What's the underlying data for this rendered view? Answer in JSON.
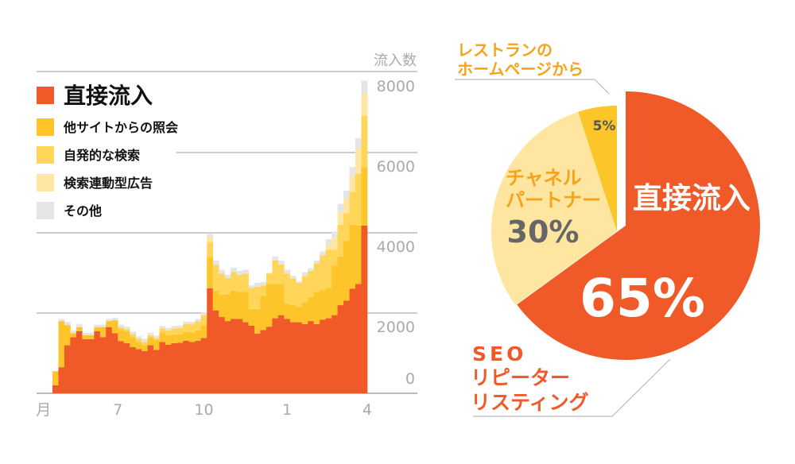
{
  "colors": {
    "direct": "#F05A28",
    "referral": "#FDC52A",
    "organic": "#FFD65A",
    "ads": "#FFE6A2",
    "other": "#E5E5E5",
    "grid": "#BBBBBB",
    "tick": "#AAAAAA",
    "pie_light": "#FEE6A0",
    "pie_gold": "#FCC62A",
    "label_orange": "#F7A21B",
    "label_dark": "#666666"
  },
  "chart_data": [
    {
      "type": "bar",
      "stacked": true,
      "title": "",
      "ylabel": "流入数",
      "xlabel": "",
      "ylim": [
        0,
        8000
      ],
      "yticks": [
        "0",
        "2000",
        "4000",
        "6000",
        "8000"
      ],
      "xticks": [
        {
          "label": "月",
          "index": -1.5
        },
        {
          "label": "7",
          "index": 11
        },
        {
          "label": "10",
          "index": 25.5
        },
        {
          "label": "1",
          "index": 39.5
        },
        {
          "label": "4",
          "index": 53
        }
      ],
      "grid": true,
      "legend_position": "top-left",
      "series": [
        {
          "name": "直接流入",
          "key": "direct",
          "values": [
            200,
            650,
            1200,
            1400,
            1550,
            1350,
            1350,
            1550,
            1400,
            1650,
            1500,
            1300,
            1250,
            1150,
            1100,
            1050,
            1200,
            1080,
            1280,
            1210,
            1250,
            1260,
            1310,
            1280,
            1310,
            1380,
            2620,
            2066,
            1900,
            1800,
            1856,
            1856,
            1771,
            1686,
            1490,
            1574,
            1660,
            1870,
            1948,
            1856,
            1771,
            1771,
            1725,
            1800,
            1725,
            1837,
            1870,
            1948,
            2197,
            2310,
            2604,
            2722,
            4180
          ]
        },
        {
          "name": "他サイトからの照会",
          "key": "referral",
          "values": [
            350,
            1150,
            500,
            100,
            100,
            100,
            100,
            100,
            250,
            150,
            320,
            300,
            300,
            250,
            180,
            150,
            200,
            250,
            240,
            240,
            220,
            210,
            220,
            240,
            260,
            320,
            780,
            494,
            560,
            670,
            704,
            669,
            754,
            414,
            610,
            853,
            1062,
            852,
            774,
            374,
            429,
            394,
            540,
            595,
            800,
            743,
            755,
            1232,
            1213,
            1490,
            1596,
            1458,
            1460
          ]
        },
        {
          "name": "自発的な検索",
          "key": "organic",
          "values": [
            0,
            0,
            0,
            0,
            0,
            0,
            0,
            0,
            0,
            0,
            0,
            50,
            50,
            80,
            80,
            80,
            50,
            50,
            100,
            120,
            150,
            160,
            200,
            200,
            220,
            250,
            370,
            640,
            525,
            400,
            460,
            425,
            460,
            525,
            557,
            263,
            263,
            588,
            488,
            755,
            660,
            590,
            655,
            655,
            720,
            860,
            950,
            395,
            790,
            690,
            820,
            1300,
            1280
          ]
        },
        {
          "name": "検索連動型広告",
          "key": "ads",
          "values": [
            0,
            0,
            0,
            0,
            0,
            0,
            0,
            0,
            0,
            0,
            0,
            0,
            0,
            0,
            0,
            0,
            0,
            0,
            0,
            0,
            0,
            0,
            0,
            0,
            0,
            0,
            120,
            0,
            0,
            0,
            0,
            0,
            0,
            0,
            0,
            0,
            0,
            0,
            0,
            0,
            0,
            0,
            0,
            0,
            0,
            0,
            135,
            295,
            325,
            360,
            390,
            630,
            560
          ]
        },
        {
          "name": "その他",
          "key": "other",
          "values": [
            0,
            50,
            80,
            60,
            80,
            60,
            60,
            60,
            60,
            60,
            60,
            60,
            60,
            60,
            60,
            80,
            60,
            60,
            60,
            60,
            60,
            60,
            60,
            60,
            60,
            60,
            80,
            110,
            95,
            80,
            110,
            100,
            95,
            65,
            98,
            85,
            15,
            100,
            100,
            95,
            70,
            35,
            100,
            65,
            65,
            100,
            130,
            165,
            195,
            200,
            230,
            250,
            310
          ]
        }
      ]
    },
    {
      "type": "pie",
      "slices": [
        {
          "key": "seo",
          "name": "SEO リピーター リスティング",
          "label": "直接流入",
          "value": 65,
          "value_label": "65%",
          "color": "#F05A28"
        },
        {
          "key": "partner",
          "name": "チャネル パートナー",
          "value": 30,
          "value_label": "30%",
          "color": "#FEE6A0"
        },
        {
          "key": "homepage",
          "name": "レストランの ホームページから",
          "value": 5,
          "value_label": "5%",
          "color": "#FCC62A"
        }
      ],
      "callouts": {
        "homepage": [
          "レストランの",
          "ホームページから"
        ],
        "partner": [
          "チャネル",
          "パートナー"
        ],
        "seo": [
          "SEO",
          "リピーター",
          "リスティング"
        ]
      }
    }
  ]
}
